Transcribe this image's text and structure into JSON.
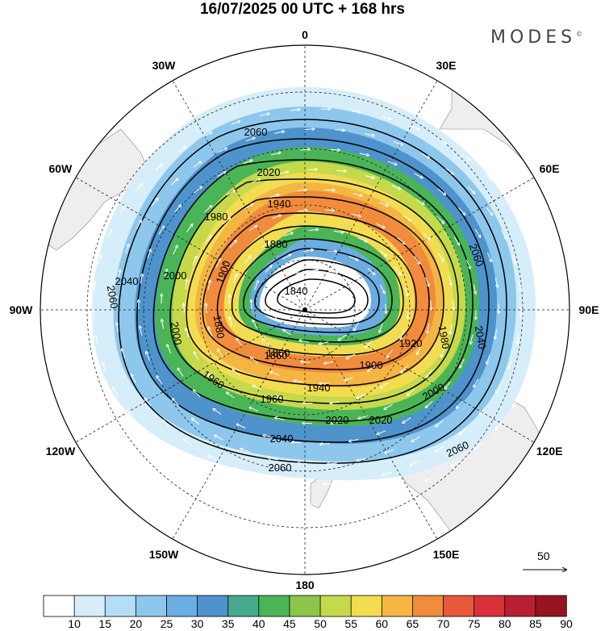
{
  "header": {
    "title": "16/07/2025  00 UTC  + 168 hrs",
    "brand": "MODES",
    "brand_mark": "©"
  },
  "map": {
    "projection": "south-polar-stereographic",
    "longitude_labels": [
      "0",
      "30E",
      "60E",
      "90E",
      "120E",
      "150E",
      "180",
      "150W",
      "120W",
      "90W",
      "60W",
      "30W"
    ],
    "contour_labels": [
      "1840",
      "1860",
      "1880",
      "1900",
      "1920",
      "1940",
      "1960",
      "1980",
      "2000",
      "2020",
      "2040",
      "2060"
    ],
    "contour_levels": [
      1840,
      1860,
      1880,
      1900,
      1920,
      1940,
      1960,
      1980,
      2000,
      2020,
      2040,
      2060
    ],
    "reference_vector": {
      "label": "50",
      "value": 50
    }
  },
  "colorbar": {
    "ticks": [
      "10",
      "15",
      "20",
      "25",
      "30",
      "35",
      "40",
      "45",
      "50",
      "55",
      "60",
      "65",
      "70",
      "75",
      "80",
      "85",
      "90"
    ],
    "colors": [
      "#ffffff",
      "#d6eefa",
      "#b4def5",
      "#8ec7ec",
      "#6aade0",
      "#4e93cc",
      "#47a98e",
      "#4ab556",
      "#8dc54a",
      "#c5d94a",
      "#f2dc50",
      "#f4b543",
      "#f08c3b",
      "#e8583a",
      "#d8313a",
      "#b91f32",
      "#96141f"
    ]
  }
}
